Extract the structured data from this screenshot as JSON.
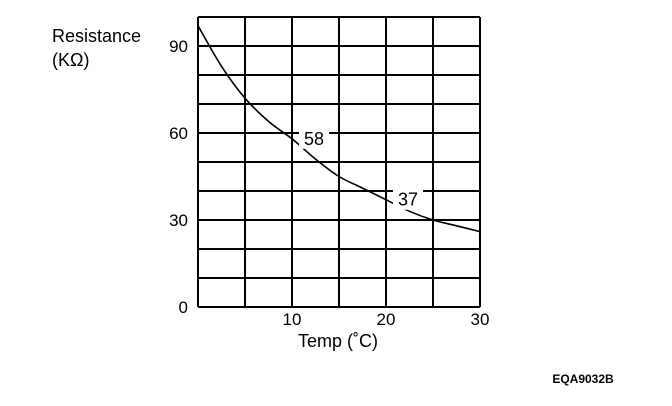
{
  "chart_data": {
    "type": "line",
    "xlabel": "Temp (˚C)",
    "ylabel_lines": [
      "Resistance",
      "(KΩ)"
    ],
    "xlim": [
      0,
      30
    ],
    "ylim": [
      0,
      100
    ],
    "x_ticks": [
      10,
      20,
      30
    ],
    "y_ticks": [
      0,
      30,
      60,
      90
    ],
    "grid": true,
    "grid_x_step": 5,
    "grid_y_step": 10,
    "series": [
      {
        "x": [
          0,
          2.5,
          5,
          7.5,
          10,
          12.5,
          15,
          17.5,
          20,
          22.5,
          25,
          27.5,
          30
        ],
        "y": [
          97,
          83,
          72,
          64,
          58,
          51,
          45,
          41,
          37,
          33,
          30,
          28,
          26
        ]
      }
    ],
    "annotations": [
      {
        "text": "58",
        "x": 10,
        "y": 58
      },
      {
        "text": "37",
        "x": 20,
        "y": 37
      }
    ],
    "colors": {
      "line": "#000000",
      "grid": "#000000"
    }
  },
  "figure_code": "EQA9032B"
}
